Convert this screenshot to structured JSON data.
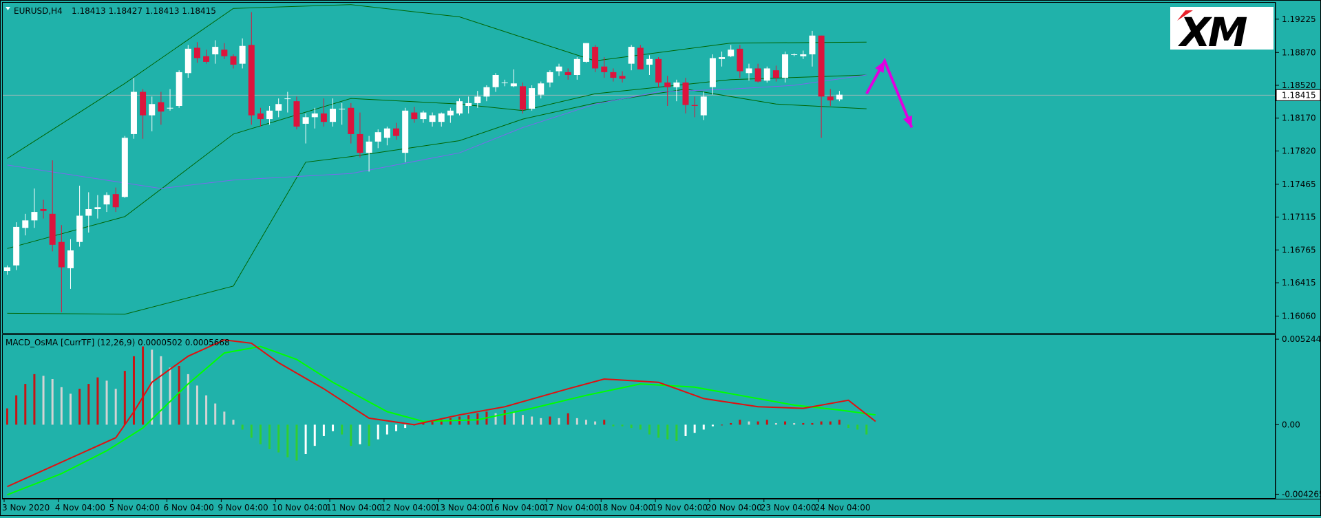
{
  "header": {
    "symbol": "EURUSD,H4",
    "ohlc": "1.18413 1.18427 1.18413 1.18415"
  },
  "logo": {
    "text": "XM"
  },
  "price_axis": {
    "ticks": [
      "1.19225",
      "1.18870",
      "1.18520",
      "1.18170",
      "1.17820",
      "1.17465",
      "1.17115",
      "1.16765",
      "1.16415",
      "1.16060"
    ],
    "current_price": "1.18415"
  },
  "macd": {
    "label": "MACD_OsMA [CurrTF] (12,26,9) 0.0000502 0.0005668",
    "ticks": [
      "0.0052441",
      "0.00",
      "-0.0042655"
    ]
  },
  "time_axis": {
    "labels": [
      "3 Nov 2020",
      "4 Nov 04:00",
      "5 Nov 04:00",
      "6 Nov 04:00",
      "9 Nov 04:00",
      "10 Nov 04:00",
      "11 Nov 04:00",
      "12 Nov 04:00",
      "13 Nov 04:00",
      "16 Nov 04:00",
      "17 Nov 04:00",
      "18 Nov 04:00",
      "19 Nov 04:00",
      "20 Nov 04:00",
      "23 Nov 04:00",
      "24 Nov 04:00"
    ]
  },
  "colors": {
    "background": "#20b2aa",
    "bull": "#ffffff",
    "bear": "#dc143c",
    "band": "#006400",
    "ma": "#7b68ee",
    "macd_line": "#e01010",
    "signal_line": "#00ff00",
    "hist_pos_up": "#c81414",
    "hist_pos_down": "#d3d3d3",
    "hist_neg_down": "#32cd32",
    "hist_neg_up": "#ffffff",
    "arrow": "#e000e0"
  },
  "chart_data": {
    "type": "candlestick",
    "ylim": [
      1.1588,
      1.194
    ],
    "candles": [
      [
        1.1654,
        1.166,
        1.165,
        1.1658
      ],
      [
        1.166,
        1.1706,
        1.1655,
        1.1701
      ],
      [
        1.17,
        1.1715,
        1.1692,
        1.1708
      ],
      [
        1.1708,
        1.1742,
        1.17,
        1.1717
      ],
      [
        1.172,
        1.173,
        1.171,
        1.1718
      ],
      [
        1.1715,
        1.1772,
        1.1675,
        1.1682
      ],
      [
        1.1685,
        1.1703,
        1.161,
        1.1658
      ],
      [
        1.1657,
        1.1688,
        1.1635,
        1.1676
      ],
      [
        1.1685,
        1.1745,
        1.168,
        1.1713
      ],
      [
        1.1713,
        1.1738,
        1.1695,
        1.172
      ],
      [
        1.172,
        1.1735,
        1.171,
        1.1722
      ],
      [
        1.1725,
        1.1738,
        1.1717,
        1.1735
      ],
      [
        1.1736,
        1.1743,
        1.1717,
        1.1722
      ],
      [
        1.1733,
        1.1798,
        1.1732,
        1.1796
      ],
      [
        1.18,
        1.186,
        1.1795,
        1.1845
      ],
      [
        1.1845,
        1.1848,
        1.1795,
        1.182
      ],
      [
        1.182,
        1.184,
        1.1803,
        1.1832
      ],
      [
        1.1834,
        1.1845,
        1.181,
        1.1824
      ],
      [
        1.1828,
        1.1848,
        1.1825,
        1.1828
      ],
      [
        1.183,
        1.1868,
        1.1828,
        1.1866
      ],
      [
        1.1865,
        1.1895,
        1.186,
        1.1891
      ],
      [
        1.1892,
        1.1898,
        1.1876,
        1.1881
      ],
      [
        1.1883,
        1.189,
        1.1875,
        1.1877
      ],
      [
        1.1885,
        1.19,
        1.1875,
        1.1893
      ],
      [
        1.189,
        1.1897,
        1.188,
        1.1883
      ],
      [
        1.1883,
        1.1885,
        1.187,
        1.1874
      ],
      [
        1.1875,
        1.1902,
        1.187,
        1.1894
      ],
      [
        1.1895,
        1.193,
        1.181,
        1.182
      ],
      [
        1.1822,
        1.1828,
        1.1808,
        1.1816
      ],
      [
        1.1816,
        1.183,
        1.181,
        1.1825
      ],
      [
        1.1825,
        1.1838,
        1.1818,
        1.1832
      ],
      [
        1.1838,
        1.1845,
        1.1823,
        1.1838
      ],
      [
        1.1835,
        1.184,
        1.1805,
        1.1808
      ],
      [
        1.1811,
        1.1822,
        1.179,
        1.1818
      ],
      [
        1.1818,
        1.1828,
        1.1806,
        1.1822
      ],
      [
        1.1822,
        1.1838,
        1.1808,
        1.1813
      ],
      [
        1.1813,
        1.1838,
        1.1808,
        1.1827
      ],
      [
        1.1827,
        1.1833,
        1.181,
        1.1827
      ],
      [
        1.1828,
        1.1833,
        1.179,
        1.18
      ],
      [
        1.18,
        1.1823,
        1.1775,
        1.178
      ],
      [
        1.178,
        1.1798,
        1.176,
        1.1792
      ],
      [
        1.1792,
        1.1805,
        1.1785,
        1.1802
      ],
      [
        1.1796,
        1.1808,
        1.1788,
        1.1806
      ],
      [
        1.1806,
        1.1812,
        1.1794,
        1.1798
      ],
      [
        1.178,
        1.1828,
        1.177,
        1.1825
      ],
      [
        1.1823,
        1.1829,
        1.1812,
        1.1816
      ],
      [
        1.1816,
        1.1825,
        1.1812,
        1.1823
      ],
      [
        1.1813,
        1.1823,
        1.1808,
        1.182
      ],
      [
        1.1813,
        1.1823,
        1.1808,
        1.1822
      ],
      [
        1.182,
        1.1828,
        1.1812,
        1.1825
      ],
      [
        1.1822,
        1.1838,
        1.182,
        1.1835
      ],
      [
        1.183,
        1.184,
        1.1822,
        1.1833
      ],
      [
        1.1833,
        1.1846,
        1.1828,
        1.184
      ],
      [
        1.184,
        1.1852,
        1.1835,
        1.185
      ],
      [
        1.185,
        1.1865,
        1.1845,
        1.1863
      ],
      [
        1.1855,
        1.1858,
        1.1851,
        1.1855
      ],
      [
        1.1851,
        1.1869,
        1.185,
        1.1854
      ],
      [
        1.1851,
        1.1855,
        1.1822,
        1.1826
      ],
      [
        1.1827,
        1.1852,
        1.1825,
        1.1849
      ],
      [
        1.1842,
        1.1856,
        1.1838,
        1.1854
      ],
      [
        1.1855,
        1.1868,
        1.185,
        1.1866
      ],
      [
        1.1867,
        1.1875,
        1.1862,
        1.1872
      ],
      [
        1.1866,
        1.187,
        1.1858,
        1.1863
      ],
      [
        1.1863,
        1.1882,
        1.1858,
        1.188
      ],
      [
        1.1877,
        1.1897,
        1.1876,
        1.1897
      ],
      [
        1.1893,
        1.1895,
        1.1866,
        1.187
      ],
      [
        1.1872,
        1.1882,
        1.186,
        1.1866
      ],
      [
        1.1866,
        1.187,
        1.1856,
        1.186
      ],
      [
        1.1862,
        1.1867,
        1.1855,
        1.1859
      ],
      [
        1.1875,
        1.1895,
        1.1868,
        1.1893
      ],
      [
        1.1892,
        1.1895,
        1.1869,
        1.1869
      ],
      [
        1.1874,
        1.1884,
        1.1863,
        1.188
      ],
      [
        1.188,
        1.1882,
        1.185,
        1.1855
      ],
      [
        1.1855,
        1.1862,
        1.183,
        1.185
      ],
      [
        1.185,
        1.1858,
        1.1835,
        1.1855
      ],
      [
        1.1855,
        1.186,
        1.1822,
        1.1831
      ],
      [
        1.1831,
        1.184,
        1.1818,
        1.183
      ],
      [
        1.182,
        1.1845,
        1.1815,
        1.184
      ],
      [
        1.185,
        1.1885,
        1.1842,
        1.1881
      ],
      [
        1.188,
        1.1888,
        1.1872,
        1.1882
      ],
      [
        1.1883,
        1.1895,
        1.1882,
        1.189
      ],
      [
        1.1891,
        1.1895,
        1.186,
        1.1867
      ],
      [
        1.1865,
        1.1875,
        1.1857,
        1.187
      ],
      [
        1.187,
        1.1875,
        1.1855,
        1.1856
      ],
      [
        1.1857,
        1.1872,
        1.1855,
        1.187
      ],
      [
        1.1868,
        1.1873,
        1.1856,
        1.186
      ],
      [
        1.186,
        1.1888,
        1.1855,
        1.1885
      ],
      [
        1.1885,
        1.1886,
        1.1883,
        1.1885
      ],
      [
        1.1883,
        1.1889,
        1.188,
        1.1885
      ],
      [
        1.1885,
        1.191,
        1.1872,
        1.1905
      ],
      [
        1.1905,
        1.1905,
        1.1796,
        1.184
      ],
      [
        1.184,
        1.1848,
        1.183,
        1.1836
      ],
      [
        1.1837,
        1.1846,
        1.1835,
        1.1842
      ]
    ],
    "bb_upper": [
      [
        0,
        1.1774
      ],
      [
        13,
        1.1854
      ],
      [
        25,
        1.1934
      ],
      [
        38,
        1.1938
      ],
      [
        50,
        1.1925
      ],
      [
        57,
        1.1903
      ],
      [
        65,
        1.1878
      ],
      [
        80,
        1.1897
      ],
      [
        95,
        1.1898
      ]
    ],
    "bb_mid": [
      [
        0,
        1.1678
      ],
      [
        13,
        1.1712
      ],
      [
        25,
        1.18
      ],
      [
        38,
        1.1838
      ],
      [
        50,
        1.1832
      ],
      [
        57,
        1.1825
      ],
      [
        65,
        1.1843
      ],
      [
        80,
        1.1858
      ],
      [
        95,
        1.1863
      ]
    ],
    "bb_lower": [
      [
        0,
        1.1609
      ],
      [
        13,
        1.1608
      ],
      [
        25,
        1.1638
      ],
      [
        33,
        1.177
      ],
      [
        38,
        1.1776
      ],
      [
        50,
        1.1793
      ],
      [
        57,
        1.1816
      ],
      [
        65,
        1.1833
      ],
      [
        75,
        1.1848
      ],
      [
        85,
        1.1832
      ],
      [
        95,
        1.1827
      ]
    ],
    "ma": [
      [
        0,
        1.1767
      ],
      [
        17,
        1.1742
      ],
      [
        25,
        1.1751
      ],
      [
        38,
        1.1758
      ],
      [
        50,
        1.178
      ],
      [
        57,
        1.1807
      ],
      [
        65,
        1.1832
      ],
      [
        72,
        1.1845
      ],
      [
        80,
        1.1848
      ],
      [
        87,
        1.1852
      ],
      [
        95,
        1.1863
      ]
    ],
    "arrow_path": [
      [
        95,
        1.1843
      ],
      [
        97,
        1.1878
      ],
      [
        100,
        1.1807
      ]
    ],
    "macd_ylim": [
      -0.0045,
      0.0055
    ],
    "macd_hist": [
      0.001,
      0.0018,
      0.0025,
      0.0031,
      0.003,
      0.0028,
      0.0023,
      0.0019,
      0.0022,
      0.0025,
      0.0029,
      0.0027,
      0.0022,
      0.0033,
      0.0042,
      0.0048,
      0.0046,
      0.0042,
      0.0035,
      0.0036,
      0.0031,
      0.0024,
      0.0018,
      0.0013,
      0.0008,
      0.0003,
      -0.0003,
      -0.0008,
      -0.0012,
      -0.0015,
      -0.0017,
      -0.002,
      -0.0022,
      -0.0018,
      -0.0013,
      -0.0007,
      -0.0004,
      -0.0006,
      -0.0013,
      -0.0012,
      -0.0013,
      -0.0009,
      -0.0006,
      -0.0004,
      -0.0002,
      0.0,
      0.0001,
      0.0002,
      0.0003,
      0.0004,
      0.0005,
      0.0006,
      0.0007,
      0.0008,
      0.0007,
      0.0009,
      0.0008,
      0.0006,
      0.0005,
      0.0004,
      0.0005,
      0.0004,
      0.0007,
      0.0004,
      0.0003,
      0.0002,
      0.0003,
      -0.0001,
      -0.0001,
      -0.0002,
      -0.0003,
      -0.0006,
      -0.0008,
      -0.0009,
      -0.001,
      -0.0007,
      -0.0005,
      -0.0003,
      -0.0001,
      0.0,
      0.0001,
      0.0003,
      0.0002,
      0.0002,
      0.0003,
      0.0001,
      0.0002,
      0.0001,
      0.0001,
      0.0001,
      0.0002,
      0.0002,
      0.0003,
      -0.0002,
      -0.0003,
      -0.0006
    ],
    "macd_line": [
      [
        0,
        -0.0038
      ],
      [
        4,
        -0.0028
      ],
      [
        8,
        -0.0018
      ],
      [
        12,
        -0.0008
      ],
      [
        14,
        0.0008
      ],
      [
        16,
        0.0026
      ],
      [
        20,
        0.0042
      ],
      [
        24,
        0.0052
      ],
      [
        27,
        0.005
      ],
      [
        30,
        0.0038
      ],
      [
        35,
        0.0022
      ],
      [
        40,
        0.0004
      ],
      [
        45,
        0.0
      ],
      [
        50,
        0.0006
      ],
      [
        55,
        0.0011
      ],
      [
        62,
        0.0022
      ],
      [
        66,
        0.0028
      ],
      [
        72,
        0.0026
      ],
      [
        77,
        0.0016
      ],
      [
        83,
        0.0011
      ],
      [
        88,
        0.001
      ],
      [
        93,
        0.0015
      ],
      [
        96,
        0.0002
      ]
    ],
    "signal_line": [
      [
        0,
        -0.0043
      ],
      [
        6,
        -0.003
      ],
      [
        11,
        -0.0016
      ],
      [
        15,
        -0.0002
      ],
      [
        20,
        0.0025
      ],
      [
        24,
        0.0044
      ],
      [
        28,
        0.0048
      ],
      [
        32,
        0.004
      ],
      [
        36,
        0.0026
      ],
      [
        42,
        0.0008
      ],
      [
        46,
        0.0002
      ],
      [
        52,
        0.0003
      ],
      [
        58,
        0.001
      ],
      [
        64,
        0.0018
      ],
      [
        70,
        0.0025
      ],
      [
        76,
        0.0023
      ],
      [
        81,
        0.0018
      ],
      [
        87,
        0.0012
      ],
      [
        92,
        0.0009
      ],
      [
        96,
        0.0006
      ]
    ]
  }
}
